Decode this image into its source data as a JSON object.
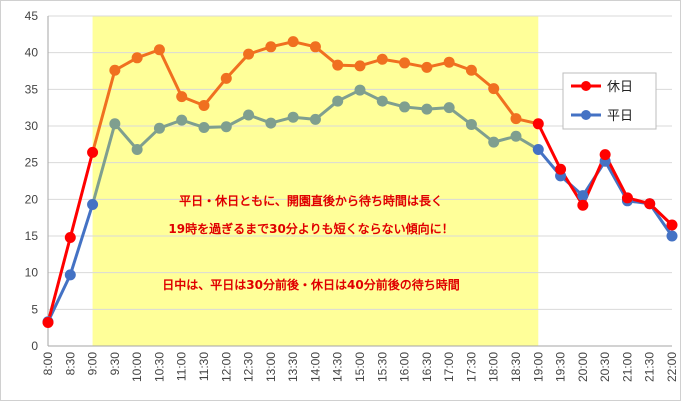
{
  "chart_data": {
    "type": "line",
    "x": [
      "8:00",
      "8:30",
      "9:00",
      "9:30",
      "10:00",
      "10:30",
      "11:00",
      "11:30",
      "12:00",
      "12:30",
      "13:00",
      "13:30",
      "14:00",
      "14:30",
      "15:00",
      "15:30",
      "16:00",
      "16:30",
      "17:00",
      "17:30",
      "18:00",
      "18:30",
      "19:00",
      "19:30",
      "20:00",
      "20:30",
      "21:00",
      "21:30",
      "22:00"
    ],
    "ylim": [
      0,
      45
    ],
    "yticks": [
      0,
      5,
      10,
      15,
      20,
      25,
      30,
      35,
      40,
      45
    ],
    "grid": true,
    "legend_position": "right",
    "highlight_range": [
      "9:00",
      "19:00"
    ],
    "highlight_color": "#ffff99",
    "series": [
      {
        "name": "休日",
        "color": "#ff0000",
        "color_highlight": "#f07020",
        "values": [
          3.2,
          14.8,
          26.4,
          37.6,
          39.3,
          40.4,
          34,
          32.8,
          36.5,
          39.8,
          40.8,
          41.5,
          40.8,
          38.3,
          38.2,
          39.1,
          38.6,
          38,
          38.7,
          37.6,
          35.1,
          31,
          30.3,
          24.1,
          19.2,
          26.1,
          20.2,
          19.4,
          16.5
        ]
      },
      {
        "name": "平日",
        "color": "#4472c4",
        "color_highlight": "#7f9f8f",
        "values": [
          3.3,
          9.7,
          19.3,
          30.3,
          26.8,
          29.7,
          30.8,
          29.8,
          29.9,
          31.5,
          30.4,
          31.2,
          30.9,
          33.4,
          34.9,
          33.4,
          32.6,
          32.3,
          32.5,
          30.2,
          27.8,
          28.6,
          26.8,
          23.2,
          20.5,
          25.2,
          19.8,
          19.4,
          15
        ]
      }
    ],
    "annotations": [
      "平日・休日ともに、開園直後から待ち時間は長く",
      "19時を過ぎるまで30分よりも短くならない傾向に！",
      "日中は、平日は30分前後・休日は40分前後の待ち時間"
    ]
  }
}
